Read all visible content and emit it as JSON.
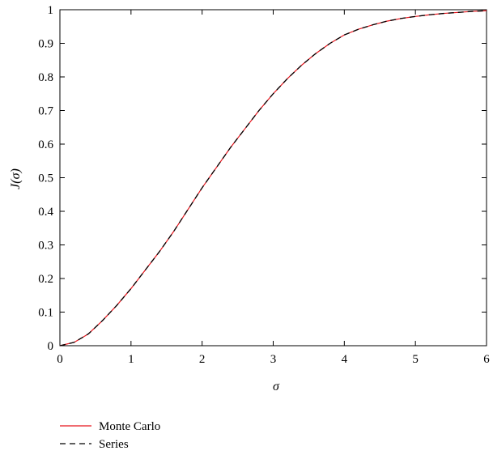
{
  "chart_data": {
    "type": "line",
    "xlabel": "σ",
    "ylabel": "J(σ)",
    "xlim": [
      0,
      6
    ],
    "ylim": [
      0,
      1
    ],
    "x_ticks": [
      "0",
      "1",
      "2",
      "3",
      "4",
      "5",
      "6"
    ],
    "y_ticks": [
      "0",
      "0.1",
      "0.2",
      "0.3",
      "0.4",
      "0.5",
      "0.6",
      "0.7",
      "0.8",
      "0.9",
      "1"
    ],
    "grid": false,
    "legend_position": "bottom-left, below plot",
    "x": [
      0,
      0.2,
      0.4,
      0.6,
      0.8,
      1.0,
      1.2,
      1.4,
      1.6,
      1.8,
      2.0,
      2.2,
      2.4,
      2.6,
      2.8,
      3.0,
      3.2,
      3.4,
      3.6,
      3.8,
      4.0,
      4.2,
      4.4,
      4.6,
      4.8,
      5.0,
      5.2,
      5.4,
      5.6,
      5.8,
      6.0
    ],
    "series": [
      {
        "name": "Monte Carlo",
        "color": "#e8141c",
        "style": "solid",
        "values": [
          0,
          0.01,
          0.035,
          0.075,
          0.12,
          0.17,
          0.225,
          0.28,
          0.34,
          0.405,
          0.47,
          0.53,
          0.59,
          0.645,
          0.7,
          0.75,
          0.795,
          0.835,
          0.87,
          0.9,
          0.925,
          0.942,
          0.955,
          0.966,
          0.974,
          0.98,
          0.985,
          0.989,
          0.992,
          0.995,
          0.997
        ]
      },
      {
        "name": "Series",
        "color": "#000000",
        "style": "dashed",
        "values": [
          0,
          0.01,
          0.035,
          0.075,
          0.12,
          0.17,
          0.225,
          0.28,
          0.34,
          0.405,
          0.47,
          0.53,
          0.59,
          0.645,
          0.7,
          0.75,
          0.795,
          0.835,
          0.87,
          0.9,
          0.925,
          0.942,
          0.955,
          0.966,
          0.974,
          0.98,
          0.985,
          0.989,
          0.992,
          0.995,
          0.997
        ]
      }
    ]
  }
}
